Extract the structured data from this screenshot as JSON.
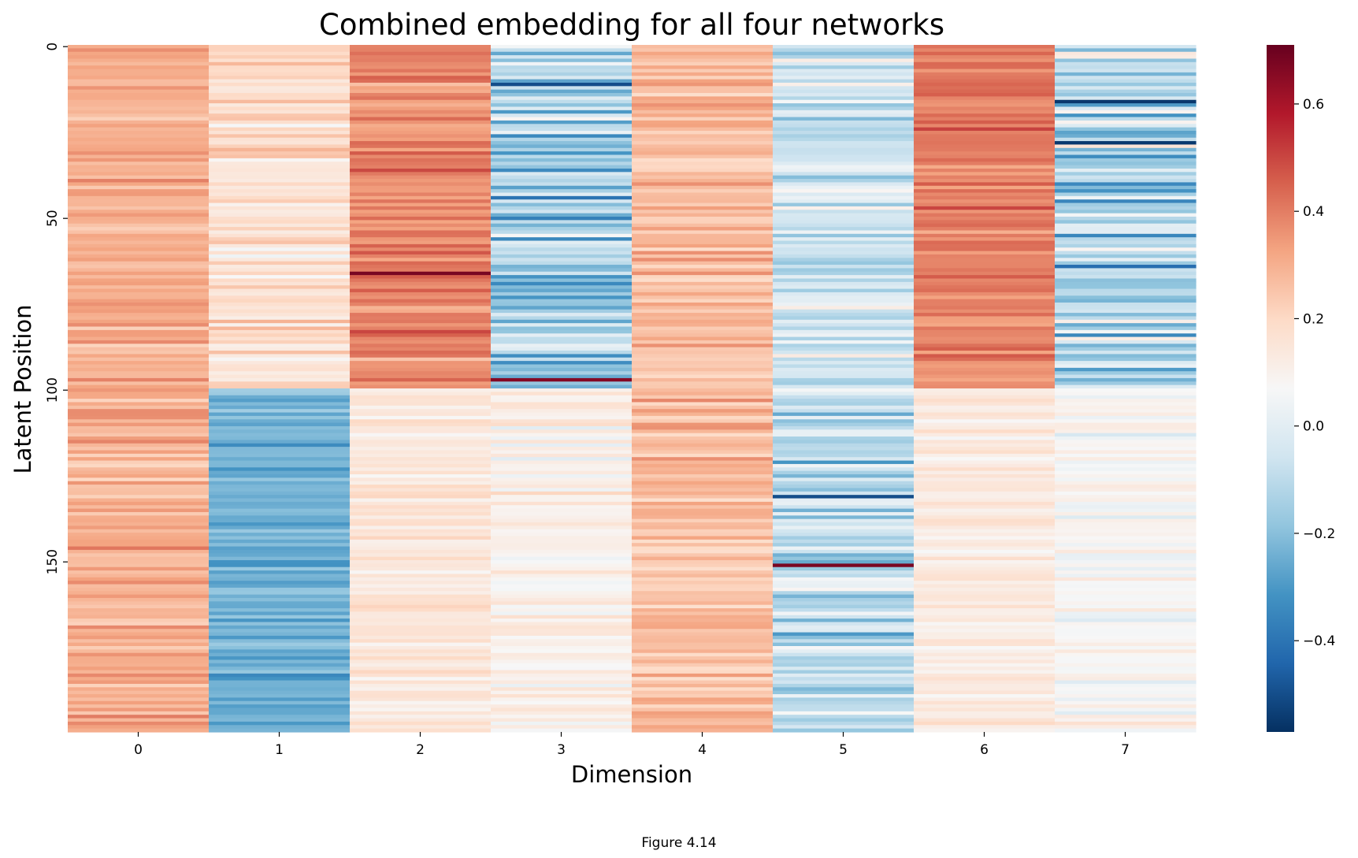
{
  "figure_caption": "Figure 4.14",
  "chart_data": {
    "type": "heatmap",
    "title": "Combined embedding for all four networks",
    "xlabel": "Dimension",
    "ylabel": "Latent Position",
    "x_tick_labels": [
      "0",
      "1",
      "2",
      "3",
      "4",
      "5",
      "6",
      "7"
    ],
    "y_tick_values": [
      0,
      50,
      100,
      150
    ],
    "y_tick_labels": [
      "0",
      "50",
      "100",
      "150"
    ],
    "rows": 200,
    "columns": 8,
    "colormap": "RdBu_r",
    "colormap_stops": [
      "#053061",
      "#2166ac",
      "#4393c3",
      "#92c5de",
      "#d1e5f0",
      "#f7f7f7",
      "#fddbc7",
      "#f4a582",
      "#d6604d",
      "#b2182b",
      "#67001f"
    ],
    "vmin": -0.57,
    "vmax": 0.71,
    "colorbar_ticks": [
      0.6,
      0.4,
      0.2,
      0.0,
      -0.2,
      -0.4
    ],
    "colorbar_tick_labels": [
      "0.6",
      "0.4",
      "0.2",
      "0.0",
      "−0.2",
      "−0.4"
    ],
    "column_segments": [
      {
        "column": 0,
        "segments": [
          {
            "rows": [
              0,
              199
            ],
            "mean": 0.3,
            "spread": 0.06
          }
        ]
      },
      {
        "column": 1,
        "segments": [
          {
            "rows": [
              0,
              99
            ],
            "mean": 0.18,
            "spread": 0.07
          },
          {
            "rows": [
              100,
              199
            ],
            "mean": -0.24,
            "spread": 0.06
          }
        ]
      },
      {
        "column": 2,
        "segments": [
          {
            "rows": [
              0,
              99
            ],
            "mean": 0.38,
            "spread": 0.07
          },
          {
            "rows": [
              100,
              199
            ],
            "mean": 0.15,
            "spread": 0.05
          }
        ]
      },
      {
        "column": 3,
        "segments": [
          {
            "rows": [
              0,
              99
            ],
            "mean": -0.15,
            "spread": 0.15
          },
          {
            "rows": [
              100,
              199
            ],
            "mean": 0.1,
            "spread": 0.06
          }
        ]
      },
      {
        "column": 4,
        "segments": [
          {
            "rows": [
              0,
              199
            ],
            "mean": 0.26,
            "spread": 0.07
          }
        ]
      },
      {
        "column": 5,
        "segments": [
          {
            "rows": [
              0,
              99
            ],
            "mean": -0.05,
            "spread": 0.12
          },
          {
            "rows": [
              100,
              199
            ],
            "mean": -0.1,
            "spread": 0.12
          }
        ]
      },
      {
        "column": 6,
        "segments": [
          {
            "rows": [
              0,
              99
            ],
            "mean": 0.4,
            "spread": 0.06
          },
          {
            "rows": [
              100,
              199
            ],
            "mean": 0.13,
            "spread": 0.04
          }
        ]
      },
      {
        "column": 7,
        "segments": [
          {
            "rows": [
              0,
              99
            ],
            "mean": -0.1,
            "spread": 0.18
          },
          {
            "rows": [
              100,
              199
            ],
            "mean": 0.07,
            "spread": 0.06
          }
        ]
      }
    ],
    "notable_rows": [
      {
        "row": 66,
        "column": 2,
        "value": 0.68
      },
      {
        "row": 97,
        "column": 3,
        "value": 0.66
      },
      {
        "row": 151,
        "column": 5,
        "value": 0.68
      },
      {
        "row": 16,
        "column": 7,
        "value": -0.55
      },
      {
        "row": 28,
        "column": 7,
        "value": -0.55
      },
      {
        "row": 11,
        "column": 3,
        "value": -0.5
      },
      {
        "row": 131,
        "column": 5,
        "value": -0.5
      }
    ]
  }
}
